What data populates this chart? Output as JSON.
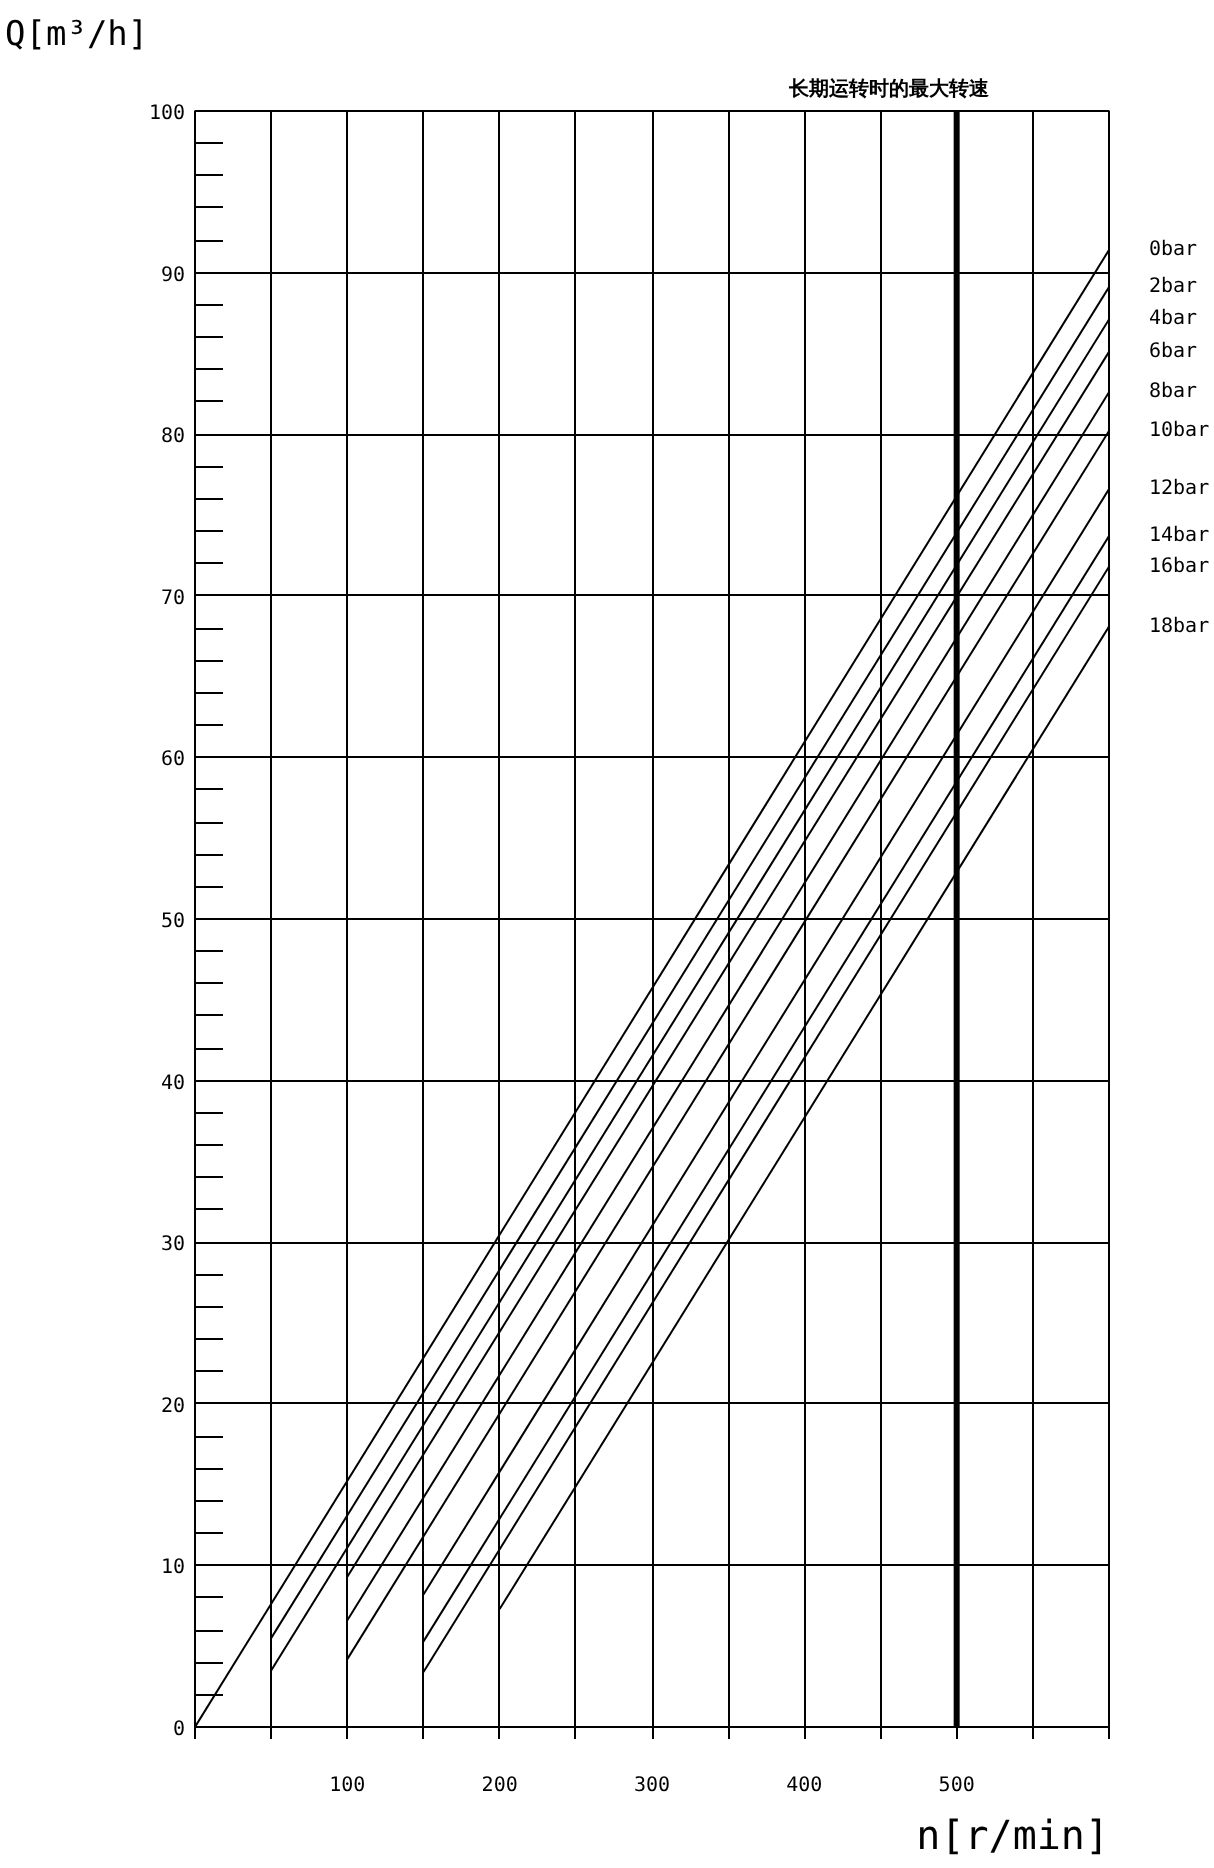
{
  "chart_data": {
    "type": "line",
    "xlabel": "n[r/min]",
    "ylabel": "Q[m³/h]",
    "xlim": [
      0,
      600
    ],
    "ylim": [
      0,
      100
    ],
    "xticks": [
      {
        "value": 0,
        "label": null
      },
      {
        "value": 50,
        "label": null
      },
      100,
      {
        "value": 150,
        "label": null
      },
      200,
      {
        "value": 250,
        "label": null
      },
      300,
      {
        "value": 350,
        "label": null
      },
      400,
      {
        "value": 450,
        "label": null
      },
      500,
      {
        "value": 550,
        "label": null
      },
      {
        "value": 600,
        "label": null
      }
    ],
    "yticks": [
      0,
      {
        "value": 2,
        "label": null
      },
      {
        "value": 4,
        "label": null
      },
      {
        "value": 6,
        "label": null
      },
      {
        "value": 8,
        "label": null
      },
      10,
      {
        "value": 12,
        "label": null
      },
      {
        "value": 14,
        "label": null
      },
      {
        "value": 16,
        "label": null
      },
      {
        "value": 18,
        "label": null
      },
      20,
      {
        "value": 22,
        "label": null
      },
      {
        "value": 24,
        "label": null
      },
      {
        "value": 26,
        "label": null
      },
      {
        "value": 28,
        "label": null
      },
      30,
      {
        "value": 32,
        "label": null
      },
      {
        "value": 34,
        "label": null
      },
      {
        "value": 36,
        "label": null
      },
      {
        "value": 38,
        "label": null
      },
      40,
      {
        "value": 42,
        "label": null
      },
      {
        "value": 44,
        "label": null
      },
      {
        "value": 46,
        "label": null
      },
      {
        "value": 48,
        "label": null
      },
      50,
      {
        "value": 52,
        "label": null
      },
      {
        "value": 54,
        "label": null
      },
      {
        "value": 56,
        "label": null
      },
      {
        "value": 58,
        "label": null
      },
      60,
      {
        "value": 62,
        "label": null
      },
      {
        "value": 64,
        "label": null
      },
      {
        "value": 66,
        "label": null
      },
      {
        "value": 68,
        "label": null
      },
      70,
      {
        "value": 72,
        "label": null
      },
      {
        "value": 74,
        "label": null
      },
      {
        "value": 76,
        "label": null
      },
      {
        "value": 78,
        "label": null
      },
      80,
      {
        "value": 82,
        "label": null
      },
      {
        "value": 84,
        "label": null
      },
      {
        "value": 86,
        "label": null
      },
      {
        "value": 88,
        "label": null
      },
      90,
      {
        "value": 92,
        "label": null
      },
      {
        "value": 94,
        "label": null
      },
      {
        "value": 96,
        "label": null
      },
      {
        "value": 98,
        "label": null
      },
      100
    ],
    "grid": true,
    "marker": "none",
    "line_style": "solid",
    "ref_lines": [
      {
        "axis": "x",
        "value": 500,
        "label": "长期运转时的最大转速",
        "color": "#000000"
      }
    ],
    "series": [
      {
        "name": "0bar",
        "color": "#000000",
        "x": [
          0,
          600
        ],
        "values": [
          0,
          91.4
        ]
      },
      {
        "name": "2bar",
        "color": "#000000",
        "x": [
          50,
          600
        ],
        "values": [
          5.5,
          89.1
        ]
      },
      {
        "name": "4bar",
        "color": "#000000",
        "x": [
          50,
          600
        ],
        "values": [
          3.5,
          87.1
        ]
      },
      {
        "name": "6bar",
        "color": "#000000",
        "x": [
          100,
          600
        ],
        "values": [
          9.3,
          85.1
        ]
      },
      {
        "name": "8bar",
        "color": "#000000",
        "x": [
          100,
          600
        ],
        "values": [
          6.6,
          82.6
        ]
      },
      {
        "name": "10bar",
        "color": "#000000",
        "x": [
          100,
          600
        ],
        "values": [
          4.2,
          80.2
        ]
      },
      {
        "name": "12bar",
        "color": "#000000",
        "x": [
          150,
          600
        ],
        "values": [
          8.2,
          76.6
        ]
      },
      {
        "name": "14bar",
        "color": "#000000",
        "x": [
          150,
          600
        ],
        "values": [
          5.3,
          73.7
        ]
      },
      {
        "name": "16bar",
        "color": "#000000",
        "x": [
          150,
          600
        ],
        "values": [
          3.4,
          71.8
        ]
      },
      {
        "name": "18bar",
        "color": "#000000",
        "x": [
          200,
          600
        ],
        "values": [
          7.3,
          68.1
        ]
      }
    ]
  }
}
